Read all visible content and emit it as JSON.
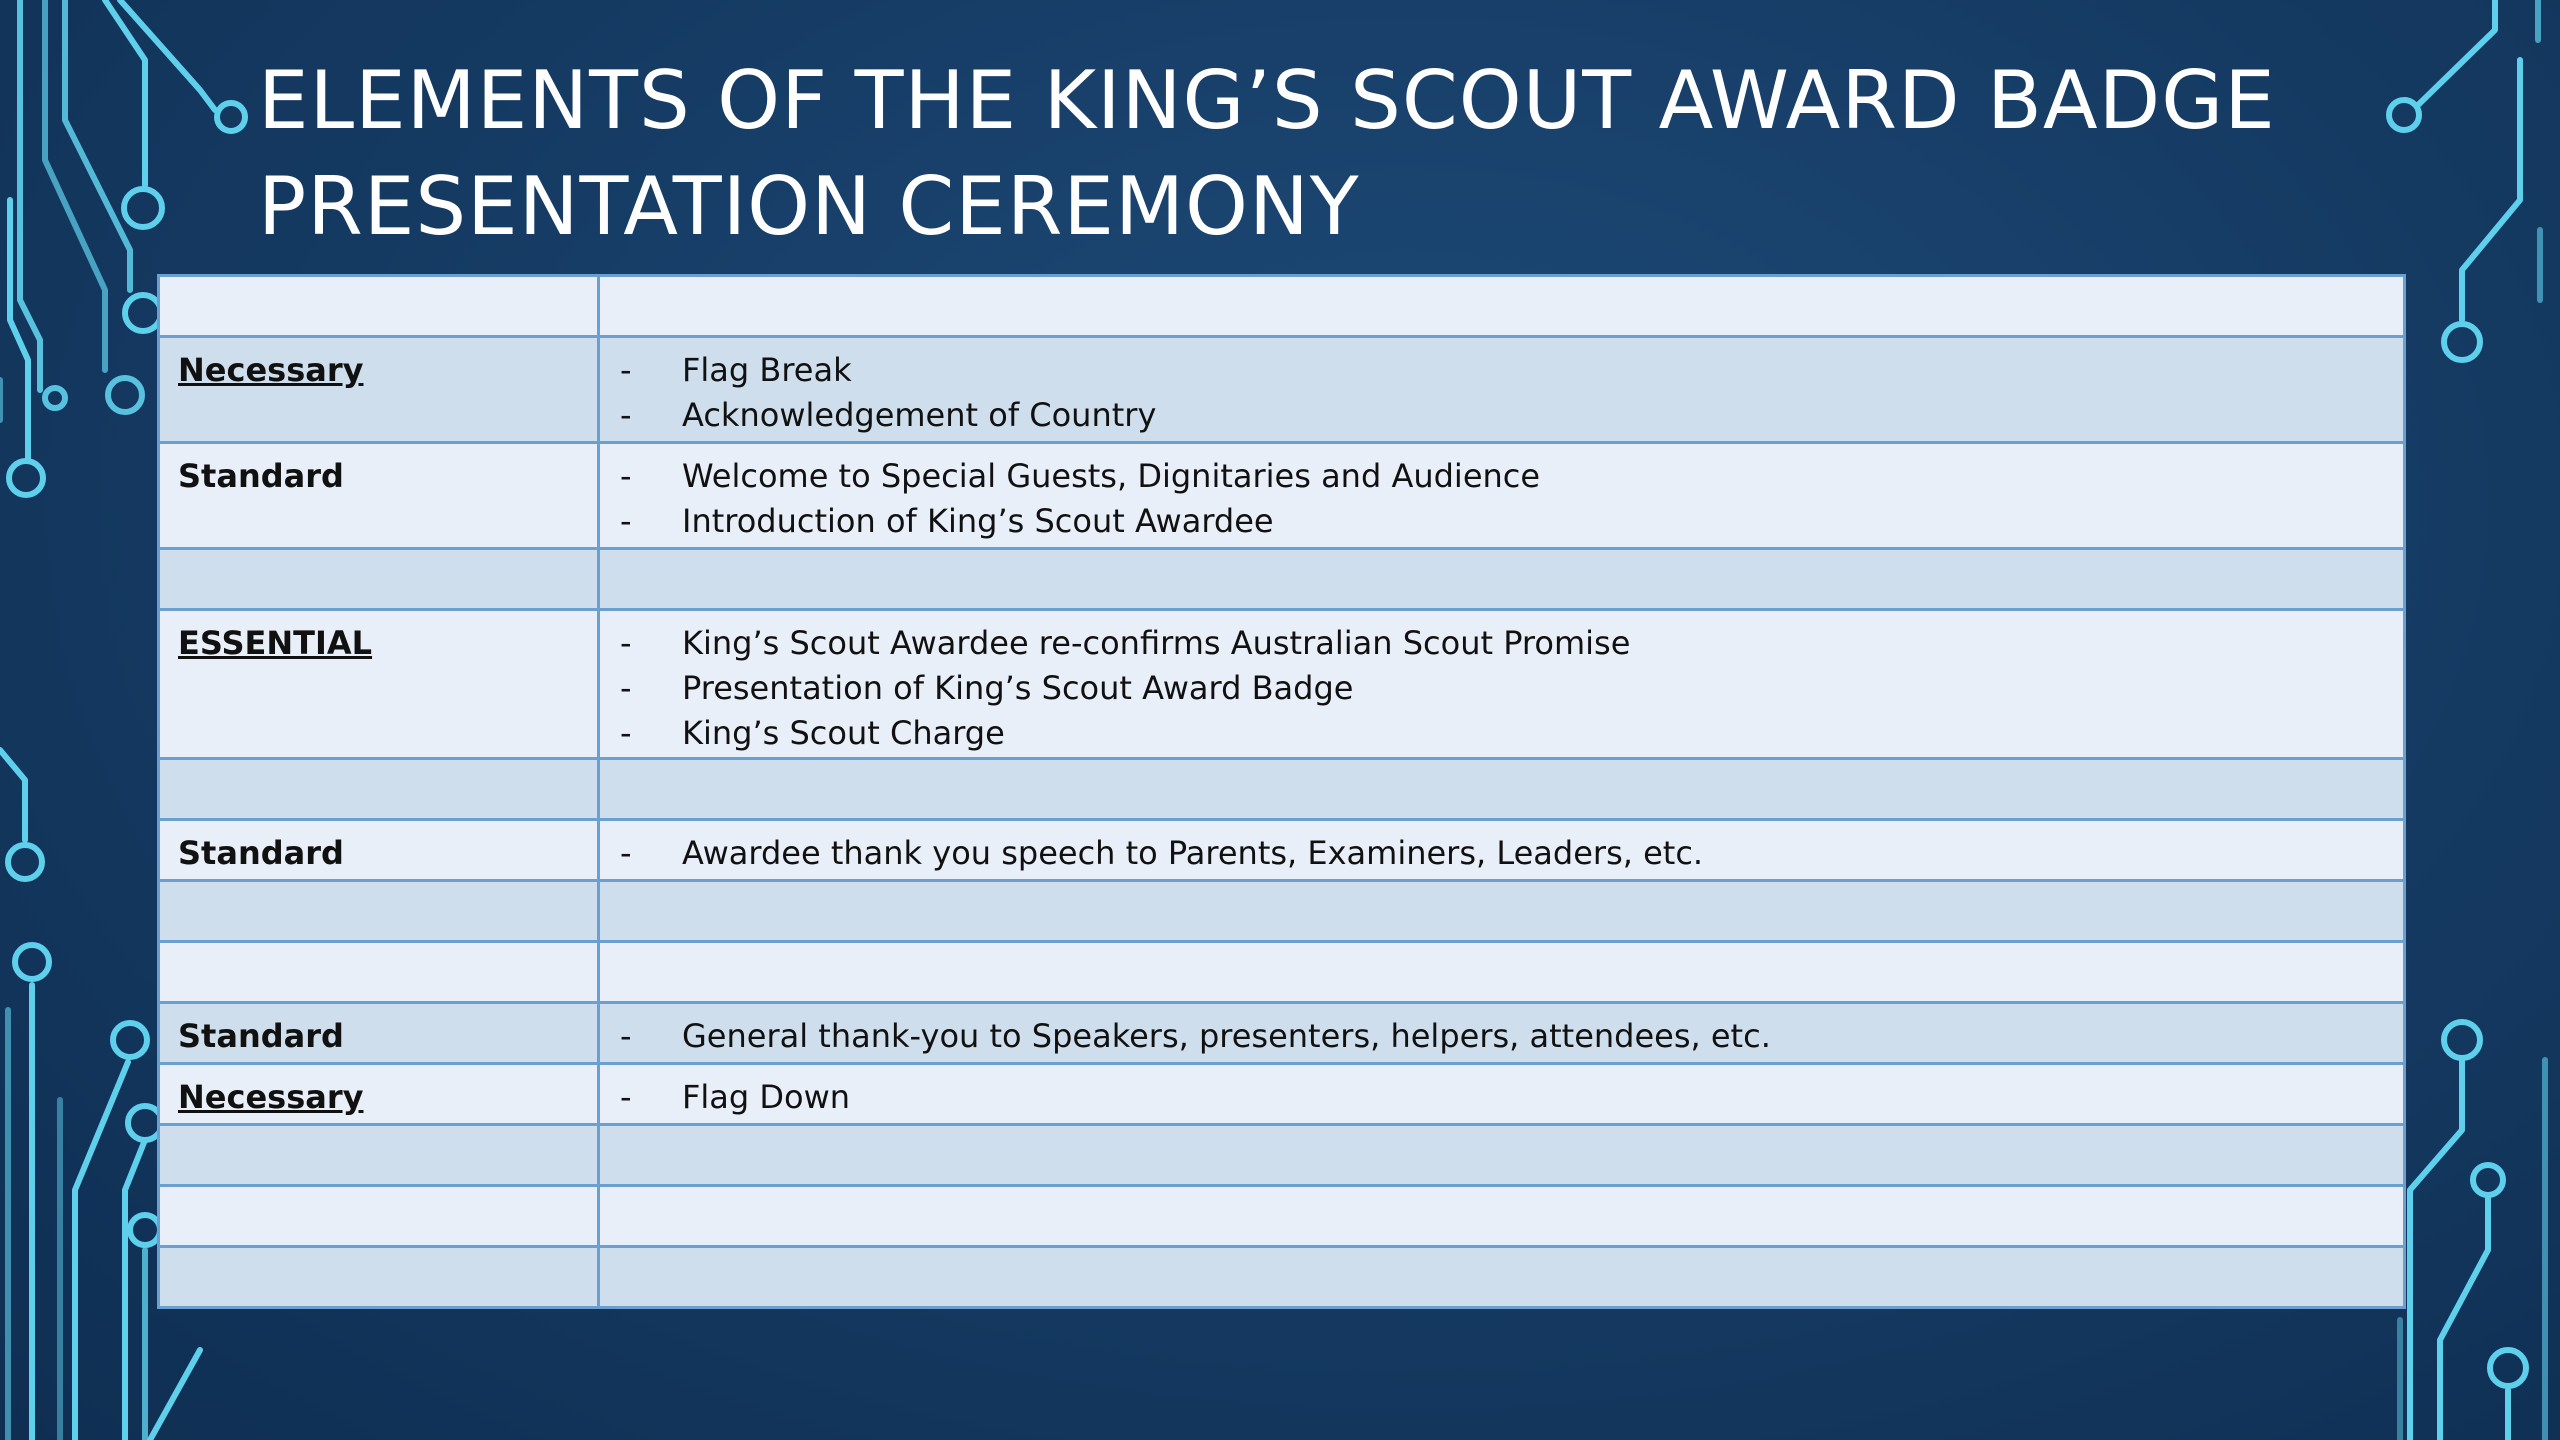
{
  "slide": {
    "title_line1": "ELEMENTS OF THE KING’S SCOUT AWARD BADGE",
    "title_line2": "PRESENTATION CEREMONY",
    "colors": {
      "background": "#163d66",
      "circuit": "#5fd0ec",
      "table_border": "#6a9fd0",
      "row_light": "#e9eff8",
      "row_dark": "#cfdeec"
    },
    "dash": "-"
  },
  "table": {
    "rows": [
      {
        "category": "",
        "items": []
      },
      {
        "category": "Necessary",
        "items": [
          "Flag Break",
          "Acknowledgement of Country"
        ]
      },
      {
        "category": "Standard",
        "items": [
          "Welcome to Special Guests, Dignitaries and Audience",
          "Introduction of King’s Scout Awardee"
        ]
      },
      {
        "category": "",
        "items": []
      },
      {
        "category": "ESSENTIAL",
        "items": [
          "King’s Scout Awardee re-confirms Australian Scout Promise",
          "Presentation of King’s Scout Award Badge",
          "King’s Scout Charge"
        ]
      },
      {
        "category": "",
        "items": []
      },
      {
        "category": "Standard",
        "items": [
          "Awardee thank you speech to Parents, Examiners, Leaders,  etc."
        ]
      },
      {
        "category": "",
        "items": []
      },
      {
        "category": "",
        "items": []
      },
      {
        "category": "Standard",
        "items": [
          "General thank-you to Speakers, presenters, helpers, attendees, etc."
        ]
      },
      {
        "category": "Necessary",
        "items": [
          "Flag Down"
        ]
      },
      {
        "category": "",
        "items": []
      },
      {
        "category": "",
        "items": []
      },
      {
        "category": "",
        "items": []
      }
    ]
  }
}
